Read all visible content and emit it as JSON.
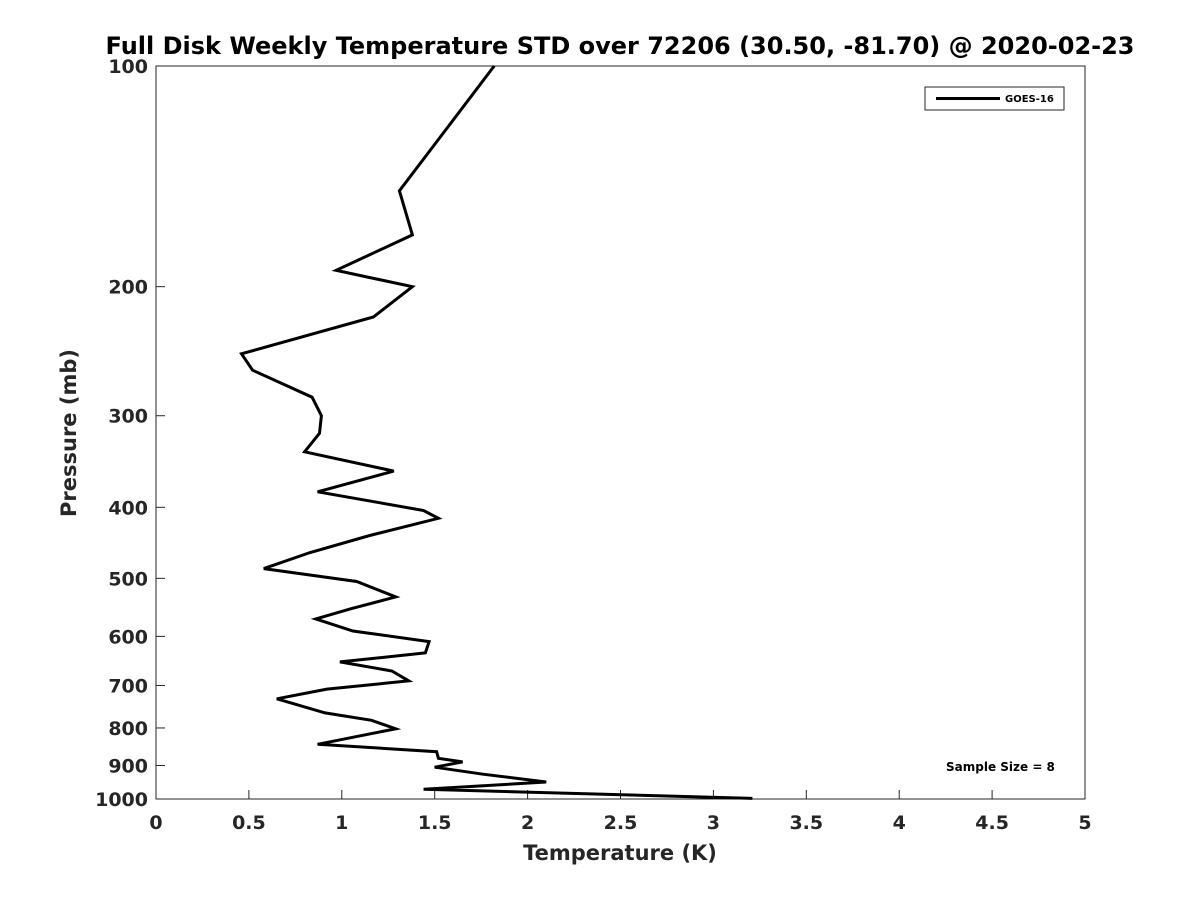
{
  "chart_data": {
    "type": "line",
    "title": "Full Disk Weekly Temperature STD over 72206 (30.50, -81.70) @ 2020-02-23",
    "xlabel": "Temperature (K)",
    "ylabel": "Pressure (mb)",
    "xlim": [
      0,
      5
    ],
    "ylim": [
      100,
      1000
    ],
    "y_scale": "log",
    "y_reversed": true,
    "x_ticks": [
      "0",
      "0.5",
      "1",
      "1.5",
      "2",
      "2.5",
      "3",
      "3.5",
      "4",
      "4.5",
      "5"
    ],
    "y_ticks": [
      "100",
      "200",
      "300",
      "400",
      "500",
      "600",
      "700",
      "800",
      "900",
      "1000"
    ],
    "grid": false,
    "legend": {
      "position": "top-right"
    },
    "annotation": "Sample Size = 8",
    "series": [
      {
        "name": "GOES-16",
        "color": "#000000",
        "points": [
          [
            1.82,
            100
          ],
          [
            1.53,
            125
          ],
          [
            1.31,
            148
          ],
          [
            1.38,
            170
          ],
          [
            0.97,
            190
          ],
          [
            1.38,
            200
          ],
          [
            1.17,
            220
          ],
          [
            0.46,
            247
          ],
          [
            0.52,
            260
          ],
          [
            0.84,
            283
          ],
          [
            0.89,
            300
          ],
          [
            0.88,
            317
          ],
          [
            0.8,
            336
          ],
          [
            1.28,
            357
          ],
          [
            0.87,
            381
          ],
          [
            1.44,
            404
          ],
          [
            1.52,
            414
          ],
          [
            1.15,
            437
          ],
          [
            0.83,
            461
          ],
          [
            0.58,
            485
          ],
          [
            1.08,
            505
          ],
          [
            1.29,
            530
          ],
          [
            1.05,
            550
          ],
          [
            0.86,
            568
          ],
          [
            1.06,
            590
          ],
          [
            1.47,
            610
          ],
          [
            1.45,
            632
          ],
          [
            0.99,
            650
          ],
          [
            1.27,
            669
          ],
          [
            1.36,
            690
          ],
          [
            0.92,
            708
          ],
          [
            0.65,
            730
          ],
          [
            0.91,
            763
          ],
          [
            1.16,
            781
          ],
          [
            1.29,
            802
          ],
          [
            1.14,
            816
          ],
          [
            0.87,
            842
          ],
          [
            1.51,
            862
          ],
          [
            1.52,
            880
          ],
          [
            1.65,
            890
          ],
          [
            1.5,
            905
          ],
          [
            1.76,
            925
          ],
          [
            2.1,
            948
          ],
          [
            1.44,
            970
          ],
          [
            3.21,
            998
          ]
        ]
      }
    ]
  }
}
